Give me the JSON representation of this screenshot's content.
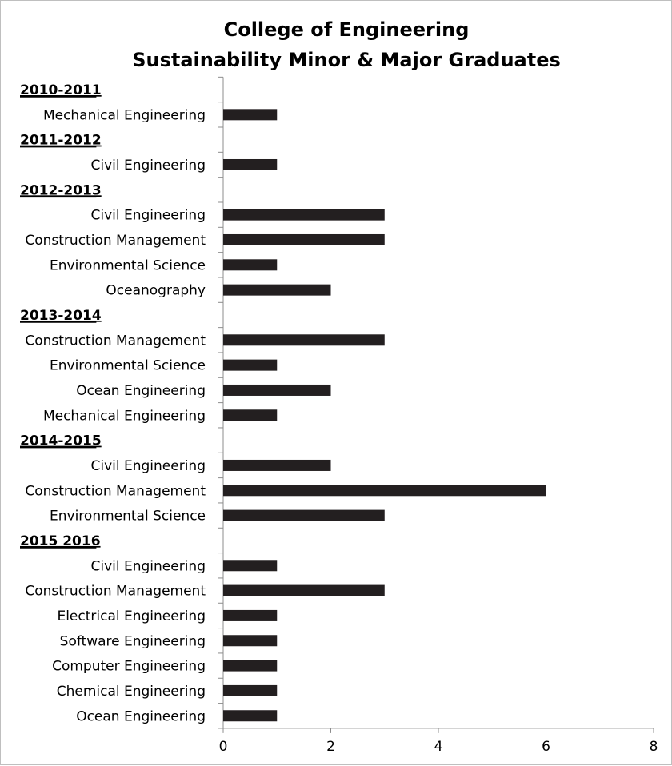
{
  "chart_data": {
    "type": "bar",
    "orientation": "horizontal",
    "title_lines": [
      "College of Engineering",
      "Sustainability Minor & Major Graduates"
    ],
    "xlim": [
      0,
      8
    ],
    "xticks": [
      "0",
      "2",
      "4",
      "6",
      "8"
    ],
    "grid": false,
    "legend": "none",
    "bar_color": "#231f20",
    "rows": [
      {
        "kind": "group",
        "label": "2010-2011"
      },
      {
        "kind": "bar",
        "label": "Mechanical Engineering",
        "value": 1
      },
      {
        "kind": "group",
        "label": "2011-2012"
      },
      {
        "kind": "bar",
        "label": "Civil Engineering",
        "value": 1
      },
      {
        "kind": "group",
        "label": "2012-2013"
      },
      {
        "kind": "bar",
        "label": "Civil Engineering",
        "value": 3
      },
      {
        "kind": "bar",
        "label": "Construction Management",
        "value": 3
      },
      {
        "kind": "bar",
        "label": "Environmental Science",
        "value": 1
      },
      {
        "kind": "bar",
        "label": "Oceanography",
        "value": 2
      },
      {
        "kind": "group",
        "label": "2013-2014"
      },
      {
        "kind": "bar",
        "label": "Construction Management",
        "value": 3
      },
      {
        "kind": "bar",
        "label": "Environmental Science",
        "value": 1
      },
      {
        "kind": "bar",
        "label": "Ocean Engineering",
        "value": 2
      },
      {
        "kind": "bar",
        "label": "Mechanical Engineering",
        "value": 1
      },
      {
        "kind": "group",
        "label": "2014-2015"
      },
      {
        "kind": "bar",
        "label": "Civil Engineering",
        "value": 2
      },
      {
        "kind": "bar",
        "label": "Construction Management",
        "value": 6
      },
      {
        "kind": "bar",
        "label": "Environmental Science",
        "value": 3
      },
      {
        "kind": "group",
        "label": "2015 2016"
      },
      {
        "kind": "bar",
        "label": "Civil Engineering",
        "value": 1
      },
      {
        "kind": "bar",
        "label": "Construction Management",
        "value": 3
      },
      {
        "kind": "bar",
        "label": "Electrical Engineering",
        "value": 1
      },
      {
        "kind": "bar",
        "label": "Software Engineering",
        "value": 1
      },
      {
        "kind": "bar",
        "label": "Computer Engineering",
        "value": 1
      },
      {
        "kind": "bar",
        "label": "Chemical Engineering",
        "value": 1
      },
      {
        "kind": "bar",
        "label": "Ocean Engineering",
        "value": 1
      }
    ]
  }
}
